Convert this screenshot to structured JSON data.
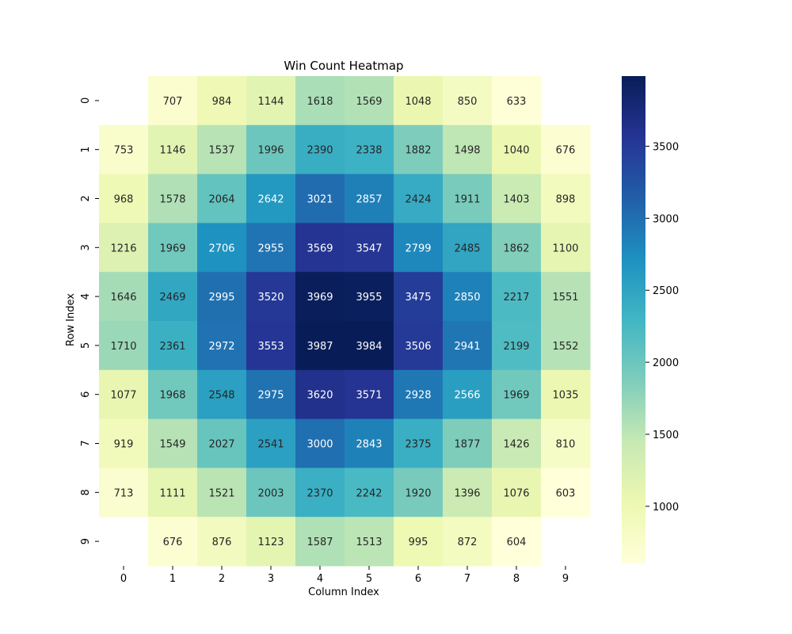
{
  "chart_data": {
    "type": "heatmap",
    "title": "Win Count Heatmap",
    "xlabel": "Column Index",
    "ylabel": "Row Index",
    "x_categories": [
      "0",
      "1",
      "2",
      "3",
      "4",
      "5",
      "6",
      "7",
      "8",
      "9"
    ],
    "y_categories": [
      "0",
      "1",
      "2",
      "3",
      "4",
      "5",
      "6",
      "7",
      "8",
      "9"
    ],
    "values": [
      [
        null,
        707,
        984,
        1144,
        1618,
        1569,
        1048,
        850,
        633,
        null
      ],
      [
        753,
        1146,
        1537,
        1996,
        2390,
        2338,
        1882,
        1498,
        1040,
        676
      ],
      [
        968,
        1578,
        2064,
        2642,
        3021,
        2857,
        2424,
        1911,
        1403,
        898
      ],
      [
        1216,
        1969,
        2706,
        2955,
        3569,
        3547,
        2799,
        2485,
        1862,
        1100
      ],
      [
        1646,
        2469,
        2995,
        3520,
        3969,
        3955,
        3475,
        2850,
        2217,
        1551
      ],
      [
        1710,
        2361,
        2972,
        3553,
        3987,
        3984,
        3506,
        2941,
        2199,
        1552
      ],
      [
        1077,
        1968,
        2548,
        2975,
        3620,
        3571,
        2928,
        2566,
        1969,
        1035
      ],
      [
        919,
        1549,
        2027,
        2541,
        3000,
        2843,
        2375,
        1877,
        1426,
        810
      ],
      [
        713,
        1111,
        1521,
        2003,
        2370,
        2242,
        1920,
        1396,
        1076,
        603
      ],
      [
        null,
        676,
        876,
        1123,
        1587,
        1513,
        995,
        872,
        604,
        null
      ]
    ],
    "colormap": "YlGnBu",
    "colormap_stops": [
      "#ffffd9",
      "#edf8b1",
      "#c7e9b4",
      "#7fcdbb",
      "#41b6c4",
      "#1d91c0",
      "#225ea8",
      "#253494",
      "#081d58"
    ],
    "vmin": 603,
    "vmax": 3987,
    "colorbar_ticks": [
      1000,
      1500,
      2000,
      2500,
      3000,
      3500
    ],
    "colorbar_tick_labels": [
      "1000",
      "1500",
      "2000",
      "2500",
      "3000",
      "3500"
    ],
    "grid": false
  }
}
